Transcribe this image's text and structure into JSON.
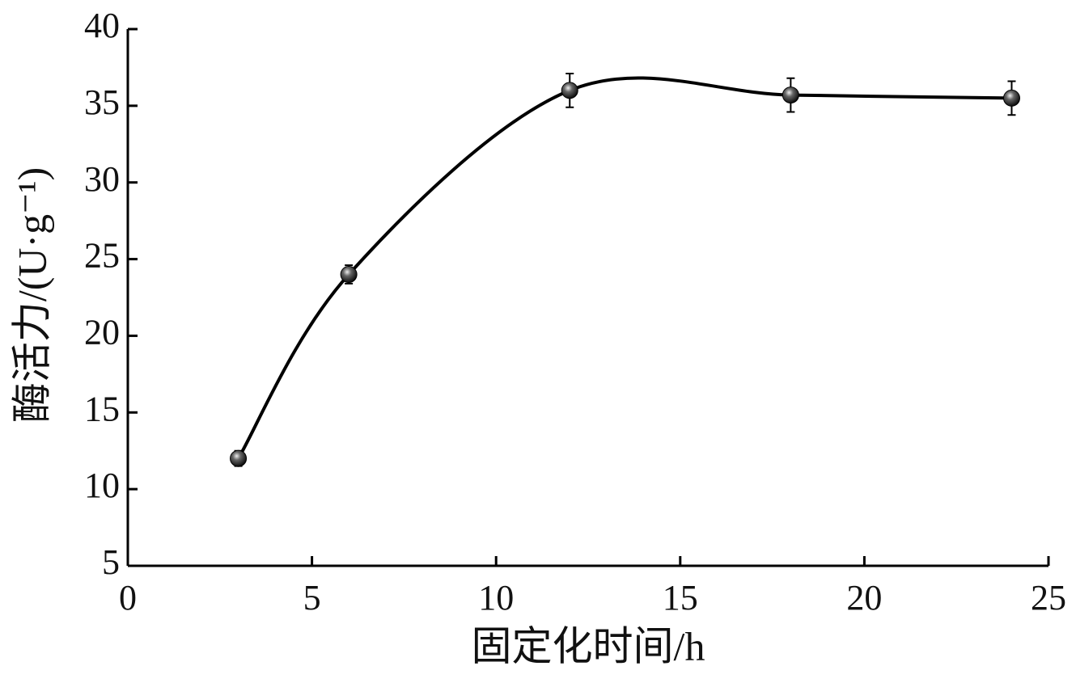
{
  "chart_data": {
    "type": "line",
    "x_label": "固定化时间/h",
    "y_label": "酶活力/(U·g⁻¹)",
    "series": [
      {
        "color": "#000000",
        "x": [
          3,
          6,
          12,
          18,
          24
        ],
        "values": [
          12,
          24,
          36,
          35.7,
          35.5
        ],
        "errors": [
          0.5,
          0.6,
          1.1,
          1.1,
          1.1
        ]
      }
    ],
    "xlim": [
      0,
      25
    ],
    "xticks": [
      0,
      5,
      10,
      15,
      20,
      25
    ],
    "ylim": [
      5,
      40
    ],
    "yticks": [
      5,
      10,
      15,
      20,
      25,
      30,
      35,
      40
    ],
    "smooth": true
  }
}
